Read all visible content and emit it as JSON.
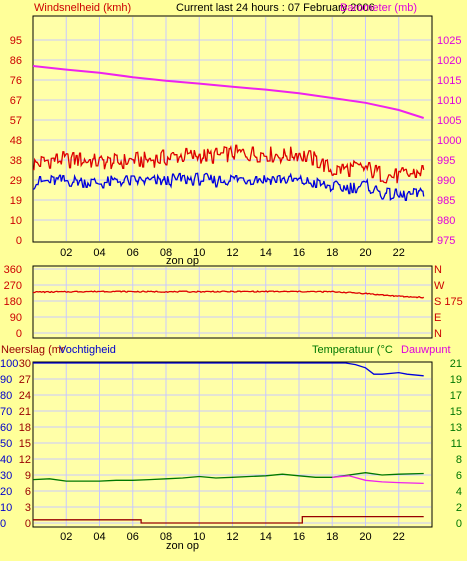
{
  "colors": {
    "background": "#ffff99",
    "plot_bg": "#ffffa8",
    "grid": "#c8c8ff",
    "red": "#dd0000",
    "blue": "#0000dd",
    "magenta": "#ee22ee",
    "green": "#007700",
    "dark_red": "#990000",
    "axis_red": "#cc0000"
  },
  "header": {
    "left": "Windsnelheid (kmh)",
    "center": "Current last 24 hours : 07 February 2006",
    "right": "Barometer (mb)"
  },
  "sunrise_labels": {
    "top": "zon op",
    "bottom": "zon op"
  },
  "x_ticks": [
    "02",
    "04",
    "06",
    "08",
    "10",
    "12",
    "14",
    "16",
    "18",
    "20",
    "22"
  ],
  "chart_data": [
    {
      "type": "line",
      "name": "wind-barometer",
      "title": "Current last 24 hours : 07 February 2006",
      "ylabel_left": "Windsnelheid (kmh)",
      "ylabel_right": "Barometer (mb)",
      "xlim": [
        0,
        24
      ],
      "ylim_left": [
        0,
        95
      ],
      "ylim_right": [
        975,
        1025
      ],
      "left_ticks": [
        "0",
        "10",
        "19",
        "29",
        "38",
        "48",
        "57",
        "67",
        "76",
        "86",
        "95"
      ],
      "right_ticks": [
        "975",
        "980",
        "985",
        "990",
        "995",
        "1000",
        "1005",
        "1010",
        "1015",
        "1020",
        "1025"
      ],
      "series": [
        {
          "axis": "left",
          "color": "#dd0000",
          "x": [
            0,
            1,
            2,
            3,
            4,
            5,
            6,
            7,
            8,
            9,
            10,
            11,
            12,
            13,
            14,
            15,
            16,
            17,
            18,
            19,
            20,
            21,
            22,
            23.5
          ],
          "y": [
            36,
            38,
            38,
            38,
            37,
            37,
            38,
            38,
            39,
            40,
            40,
            40,
            41,
            41,
            41,
            40,
            41,
            38,
            33,
            34,
            34,
            31,
            30,
            33
          ],
          "amp": 4
        },
        {
          "axis": "left",
          "color": "#0000dd",
          "x": [
            0,
            1,
            2,
            3,
            4,
            5,
            6,
            7,
            8,
            9,
            10,
            11,
            12,
            13,
            14,
            15,
            16,
            17,
            18,
            19,
            20,
            21,
            22,
            23.5
          ],
          "y": [
            27,
            28,
            28,
            28,
            27,
            28,
            28,
            28,
            28,
            29,
            29,
            28,
            29,
            29,
            29,
            29,
            28,
            27,
            25,
            25,
            26,
            22,
            21,
            22
          ],
          "amp": 3
        },
        {
          "axis": "right",
          "color": "#ee22ee",
          "x": [
            0,
            2,
            4,
            6,
            8,
            10,
            12,
            14,
            16,
            18,
            20,
            22,
            23.5
          ],
          "y": [
            1018.5,
            1017.6,
            1016.8,
            1015.7,
            1014.8,
            1014.1,
            1013.3,
            1012.6,
            1011.7,
            1010.5,
            1009.3,
            1007.5,
            1005.5
          ],
          "amp": 0
        }
      ]
    },
    {
      "type": "line",
      "name": "wind-direction",
      "xlim": [
        0,
        24
      ],
      "ylim": [
        0,
        360
      ],
      "left_ticks": [
        "0",
        "90",
        "180",
        "270",
        "360"
      ],
      "right_ticks": [
        "N",
        "E",
        "S 175",
        "W",
        "N"
      ],
      "series": [
        {
          "axis": "left",
          "color": "#dd0000",
          "x": [
            0,
            4,
            8,
            12,
            16,
            18,
            19,
            20,
            21,
            22,
            23.5
          ],
          "y": [
            230,
            234,
            232,
            233,
            233,
            232,
            228,
            222,
            214,
            206,
            200
          ],
          "amp": 3
        }
      ]
    },
    {
      "type": "line",
      "name": "rain-humidity-temperature",
      "ylabel_left_1": "Neerslag (mr",
      "ylabel_left_2": "Vochtigheid",
      "ylabel_right_1": "Temperatuur (°C",
      "ylabel_right_2": "Dauwpunt",
      "xlim": [
        0,
        24
      ],
      "ylim_humidity": [
        0,
        100
      ],
      "ylim_rain": [
        0,
        30
      ],
      "ylim_temperature": [
        0,
        21
      ],
      "humidity_ticks": [
        "0",
        "10",
        "20",
        "30",
        "40",
        "50",
        "60",
        "70",
        "80",
        "90",
        "100"
      ],
      "rain_ticks": [
        "0",
        "3",
        "6",
        "9",
        "12",
        "15",
        "18",
        "21",
        "24",
        "27",
        "30"
      ],
      "temperature_ticks": [
        "0",
        "2",
        "4",
        "6",
        "8",
        "11",
        "13",
        "15",
        "17",
        "19",
        "21"
      ],
      "series": [
        {
          "axis": "humidity",
          "color": "#0000dd",
          "x": [
            0,
            18.4,
            18.8,
            19.4,
            20,
            20.5,
            21,
            22,
            22.5,
            23.5
          ],
          "y": [
            100,
            100,
            100,
            99,
            97,
            93,
            93,
            94,
            93,
            92
          ],
          "amp": 0
        },
        {
          "axis": "temperature",
          "color": "#007700",
          "x": [
            0,
            1,
            2,
            3,
            4,
            5,
            6,
            7,
            8,
            9,
            10,
            11,
            12,
            13,
            14,
            15,
            16,
            17,
            18,
            19,
            20,
            21,
            22,
            23.5
          ],
          "y": [
            5.7,
            5.8,
            5.5,
            5.5,
            5.5,
            5.6,
            5.6,
            5.7,
            5.8,
            5.9,
            6.1,
            5.9,
            6.0,
            6.1,
            6.2,
            6.4,
            6.2,
            6.0,
            6.0,
            6.3,
            6.6,
            6.3,
            6.4,
            6.5
          ],
          "amp": 0
        },
        {
          "axis": "temperature",
          "color": "#ee22ee",
          "x": [
            18,
            19,
            20,
            21,
            22,
            23.5
          ],
          "y": [
            6.0,
            6.2,
            5.6,
            5.4,
            5.3,
            5.2
          ],
          "amp": 0
        },
        {
          "axis": "rain",
          "color": "#990000",
          "step": true,
          "x": [
            0,
            6.5,
            6.5,
            16.2,
            16.2,
            23.5
          ],
          "y": [
            0.6,
            0.6,
            0,
            0,
            1.2,
            1.2
          ],
          "amp": 0
        }
      ]
    }
  ]
}
